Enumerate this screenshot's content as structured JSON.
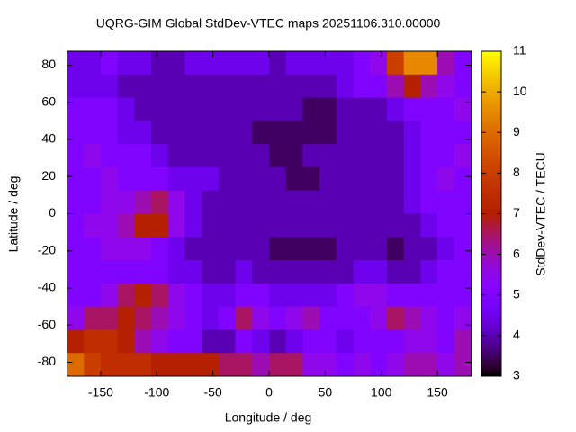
{
  "chart_data": {
    "type": "heatmap",
    "title": "UQRG-GIM Global StdDev-VTEC maps 20251106.310.00000",
    "x_label": "Longitude / deg",
    "y_label": "Latitude / deg",
    "colorbar_label": "StdDev-VTEC / TECU",
    "xlim": [
      -180,
      180
    ],
    "ylim": [
      -87.5,
      87.5
    ],
    "xticks": [
      -150,
      -100,
      -50,
      0,
      50,
      100,
      150
    ],
    "yticks": [
      -80,
      -60,
      -40,
      -20,
      0,
      20,
      40,
      60,
      80
    ],
    "zlim": [
      3,
      11
    ],
    "zticks": [
      3,
      4,
      5,
      6,
      7,
      8,
      9,
      10,
      11
    ],
    "x": [
      -172.5,
      -157.5,
      -142.5,
      -127.5,
      -112.5,
      -97.5,
      -82.5,
      -67.5,
      -52.5,
      -37.5,
      -22.5,
      -7.5,
      7.5,
      22.5,
      37.5,
      52.5,
      67.5,
      82.5,
      97.5,
      112.5,
      127.5,
      142.5,
      157.5,
      172.5
    ],
    "y": [
      81.25,
      68.75,
      56.25,
      43.75,
      31.25,
      18.75,
      6.25,
      -6.25,
      -18.75,
      -31.25,
      -43.75,
      -56.25,
      -68.75,
      -81.25
    ],
    "values": [
      [
        4.5,
        4.5,
        5,
        4.5,
        4.5,
        4,
        4,
        4.5,
        4.5,
        4.5,
        4.5,
        4.5,
        4,
        4.5,
        4.5,
        4.5,
        4.5,
        5,
        5.5,
        8,
        9.5,
        9.5,
        6,
        5
      ],
      [
        4.5,
        4.5,
        4.5,
        4,
        4,
        4,
        4,
        4,
        4,
        4,
        4,
        4,
        4,
        4,
        4,
        4,
        4.5,
        5,
        5,
        6,
        7,
        6,
        5.5,
        5
      ],
      [
        5,
        5,
        5,
        4.5,
        4,
        4,
        4,
        4,
        4,
        4,
        4,
        4,
        4,
        4,
        3.5,
        3.5,
        4,
        4,
        4,
        4.5,
        5,
        5,
        5,
        5.5
      ],
      [
        5,
        5,
        5,
        4.5,
        4.5,
        4,
        4,
        4,
        4,
        4,
        4,
        3.5,
        3.5,
        3.5,
        3.5,
        3.5,
        4,
        4,
        4,
        4,
        4.5,
        5,
        5,
        5
      ],
      [
        5,
        5.5,
        5,
        5,
        5,
        4.5,
        4,
        4,
        4,
        4,
        4,
        4,
        3.5,
        3.5,
        4,
        4,
        4,
        4,
        4,
        4,
        4.5,
        5,
        5,
        5.5
      ],
      [
        5,
        5,
        5.5,
        5,
        5,
        5,
        4.5,
        4.5,
        4.5,
        4,
        4,
        4,
        4,
        3.5,
        3.5,
        4,
        4,
        4,
        4,
        4,
        4.5,
        5,
        5.5,
        5
      ],
      [
        5,
        5,
        5.5,
        5.5,
        6,
        6.5,
        5.5,
        4.5,
        4,
        4,
        4,
        4,
        4,
        4,
        4,
        4,
        4,
        4,
        4,
        4,
        4.5,
        5,
        5,
        5
      ],
      [
        5,
        5.5,
        5.5,
        6,
        7,
        7,
        5.5,
        4.5,
        4,
        4,
        4,
        4,
        4,
        4,
        4,
        4,
        4,
        4,
        4,
        4,
        4,
        4.5,
        5,
        5
      ],
      [
        5,
        5,
        5.5,
        5.5,
        5.5,
        5,
        4.5,
        4,
        4,
        4,
        4,
        4,
        3.5,
        3.5,
        3.5,
        3.5,
        4,
        4,
        4,
        3.5,
        4,
        4,
        4.5,
        5
      ],
      [
        5,
        5,
        5,
        5,
        5,
        5,
        4.5,
        4.5,
        4,
        4,
        4.5,
        4,
        4,
        4,
        4,
        4,
        4,
        4.5,
        4.5,
        4,
        4,
        4.5,
        5,
        5
      ],
      [
        5,
        5,
        5.5,
        6.5,
        7,
        6.5,
        5.5,
        5,
        4.5,
        4.5,
        5,
        5,
        4.5,
        4.5,
        4.5,
        4.5,
        5,
        5.5,
        5.5,
        5,
        5,
        5,
        5,
        5
      ],
      [
        5.5,
        6.5,
        6.5,
        7,
        6.5,
        6,
        5.5,
        5,
        4.5,
        5,
        6.5,
        5.5,
        5,
        5.5,
        6,
        5,
        5,
        5,
        5.5,
        6.5,
        6,
        5.5,
        5,
        5.5
      ],
      [
        7,
        7.5,
        7.5,
        7,
        6,
        5.5,
        5,
        5,
        4,
        4,
        5,
        4.5,
        4,
        4.5,
        5,
        5,
        4.5,
        5,
        5,
        5,
        5.5,
        5.5,
        5,
        6
      ],
      [
        9,
        8,
        7.5,
        7.5,
        7.5,
        7,
        7,
        7,
        7,
        6.5,
        6.5,
        6,
        6.5,
        6.5,
        5.5,
        5.5,
        5,
        5.5,
        5,
        5.5,
        6,
        6,
        5.5,
        6
      ]
    ]
  }
}
